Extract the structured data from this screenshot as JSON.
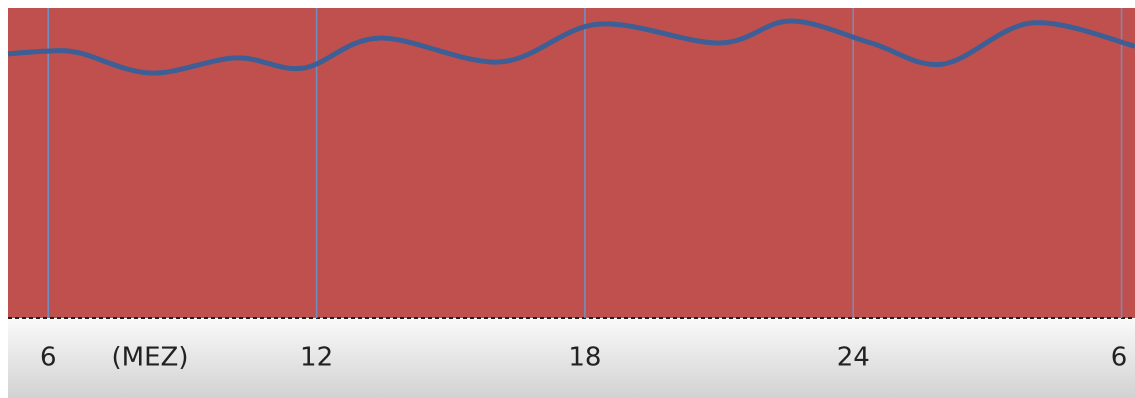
{
  "chart_data": {
    "type": "line",
    "annotation": "(MEZ)",
    "x": [
      5.1,
      6,
      6.7,
      8.3,
      10.2,
      11.7,
      13.4,
      16.1,
      18.3,
      21.0,
      22.6,
      24.4,
      26.0,
      28.0,
      30.3
    ],
    "series": [
      {
        "color": "#3d5f95",
        "values": [
          85.2,
          86.1,
          85.5,
          79.0,
          83.9,
          80.6,
          90.3,
          82.6,
          94.8,
          88.7,
          95.8,
          88.7,
          81.9,
          95.2,
          87.7
        ]
      }
    ],
    "xlim": [
      5.1,
      30.3
    ],
    "xticks": [
      6,
      12,
      18,
      24,
      {
        "value": 30,
        "label": "6"
      }
    ],
    "ylim": [
      0,
      100
    ],
    "grid": true,
    "background": "#c0504d",
    "grid_color": "#6f8fc4"
  }
}
